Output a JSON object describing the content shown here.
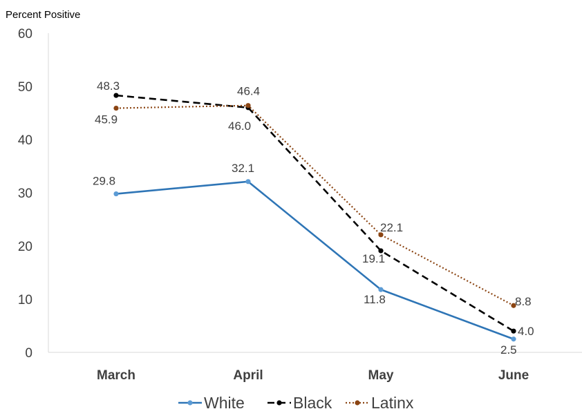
{
  "chart_data": {
    "type": "line",
    "title": "",
    "ylabel": "Percent Positive",
    "xlabel": "",
    "categories": [
      "March",
      "April",
      "May",
      "June"
    ],
    "ylim": [
      0,
      60
    ],
    "yticks": [
      "0",
      "10",
      "20",
      "30",
      "40",
      "50",
      "60"
    ],
    "grid": false,
    "legend_position": "bottom",
    "series": [
      {
        "name": "White",
        "values": [
          29.8,
          32.1,
          11.8,
          2.5
        ],
        "labels": [
          "29.8",
          "32.1",
          "11.8",
          "2.5"
        ],
        "color": "#2E75B6",
        "style": "solid"
      },
      {
        "name": "Black",
        "values": [
          48.3,
          46.0,
          19.1,
          4.0
        ],
        "labels": [
          "48.3",
          "46.0",
          "19.1",
          "4.0"
        ],
        "color": "#000000",
        "style": "dashed"
      },
      {
        "name": "Latinx",
        "values": [
          45.9,
          46.4,
          22.1,
          8.8
        ],
        "labels": [
          "45.9",
          "46.4",
          "22.1",
          "8.8"
        ],
        "color": "#8B4513",
        "style": "dotted"
      }
    ]
  }
}
